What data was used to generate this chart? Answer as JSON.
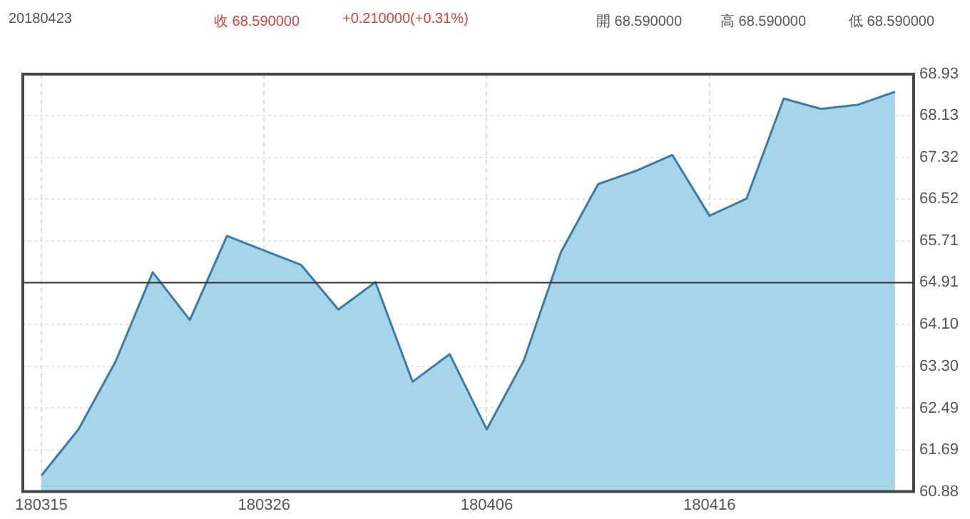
{
  "chart_data": {
    "type": "area",
    "annotations": [
      "20180423",
      "收 68.590000",
      "+0.210000(+0.31%)",
      "開 68.590000",
      "高 68.590000",
      "低 68.590000"
    ],
    "categories": [
      "180315",
      null,
      null,
      null,
      null,
      null,
      "180326",
      null,
      null,
      null,
      null,
      null,
      "180406",
      null,
      null,
      null,
      null,
      null,
      "180416",
      null,
      null,
      null,
      null,
      null
    ],
    "series": [
      {
        "color": "#3a7ca5",
        "values": [
          61.19,
          62.08,
          63.39,
          65.11,
          64.19,
          65.81,
          65.53,
          65.25,
          64.39,
          64.92,
          63.0,
          63.53,
          62.08,
          63.41,
          65.5,
          66.81,
          67.06,
          67.37,
          66.2,
          66.53,
          68.46,
          68.26,
          68.34,
          68.59
        ]
      }
    ],
    "ylim": [
      60.88,
      68.93
    ],
    "yticks": [
      60.88,
      61.69,
      62.49,
      {
        "value": 63.3,
        "label": "63.30"
      },
      {
        "value": 64.1,
        "label": "64.10"
      },
      64.91,
      65.71,
      66.52,
      67.32,
      68.13,
      68.93
    ],
    "ref_lines": [
      {
        "axis": "y",
        "value": 64.91,
        "color": "#333333"
      }
    ],
    "grid": true,
    "legend": false
  }
}
